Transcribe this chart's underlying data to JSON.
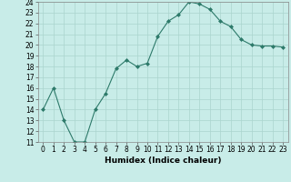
{
  "x": [
    0,
    1,
    2,
    3,
    4,
    5,
    6,
    7,
    8,
    9,
    10,
    11,
    12,
    13,
    14,
    15,
    16,
    17,
    18,
    19,
    20,
    21,
    22,
    23
  ],
  "y": [
    14,
    16,
    13,
    11,
    11,
    14,
    15.5,
    17.8,
    18.6,
    18.0,
    18.3,
    20.8,
    22.2,
    22.8,
    24.0,
    23.8,
    23.3,
    22.2,
    21.7,
    20.5,
    20.0,
    19.9,
    19.9,
    19.8
  ],
  "xlabel": "Humidex (Indice chaleur)",
  "xlim": [
    -0.5,
    23.5
  ],
  "ylim": [
    11,
    24
  ],
  "yticks": [
    11,
    12,
    13,
    14,
    15,
    16,
    17,
    18,
    19,
    20,
    21,
    22,
    23,
    24
  ],
  "xticks": [
    0,
    1,
    2,
    3,
    4,
    5,
    6,
    7,
    8,
    9,
    10,
    11,
    12,
    13,
    14,
    15,
    16,
    17,
    18,
    19,
    20,
    21,
    22,
    23
  ],
  "line_color": "#2d7a6a",
  "marker": "D",
  "marker_size": 2,
  "bg_color": "#c8ece8",
  "grid_color": "#aad4ce",
  "label_fontsize": 6.5,
  "tick_fontsize": 5.5
}
